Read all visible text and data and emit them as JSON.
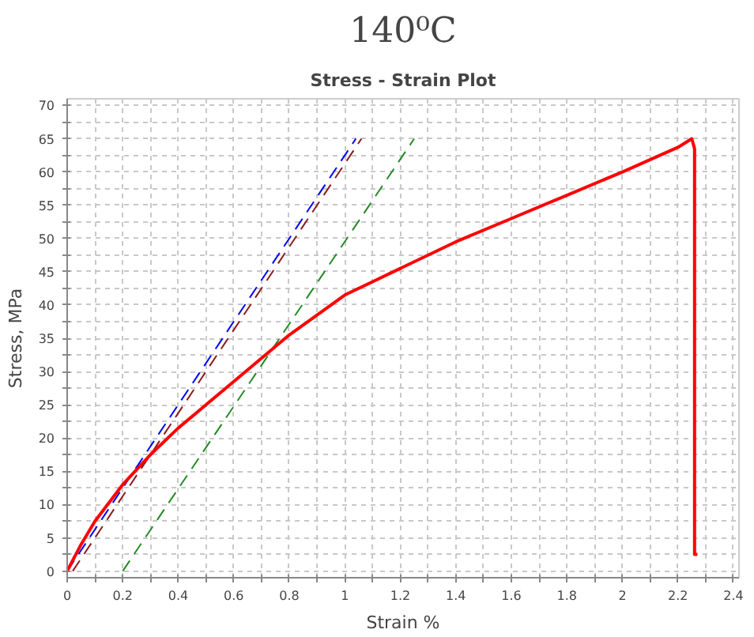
{
  "chart_data": {
    "type": "line",
    "title": "140⁰C",
    "subtitle": "Stress - Strain Plot",
    "xlabel": "Strain %",
    "ylabel": "Stress, MPa",
    "xlim": [
      0,
      2.42
    ],
    "ylim": [
      -1,
      71
    ],
    "xticks": [
      0,
      {
        "value": 0.1,
        "label": null
      },
      0.2,
      {
        "value": 0.3,
        "label": null
      },
      0.4,
      {
        "value": 0.5,
        "label": null
      },
      0.6,
      {
        "value": 0.7,
        "label": null
      },
      0.8,
      {
        "value": 0.9,
        "label": null
      },
      1,
      {
        "value": 1.1,
        "label": null
      },
      1.2,
      {
        "value": 1.3,
        "label": null
      },
      1.4,
      {
        "value": 1.5,
        "label": null
      },
      1.6,
      {
        "value": 1.7,
        "label": null
      },
      1.8,
      {
        "value": 1.9,
        "label": null
      },
      2,
      {
        "value": 2.1,
        "label": null
      },
      2.2,
      {
        "value": 2.3,
        "label": null
      },
      2.4
    ],
    "yticks": [
      0,
      {
        "value": 2.5,
        "label": null
      },
      5,
      {
        "value": 7.5,
        "label": null
      },
      10,
      {
        "value": 12.5,
        "label": null
      },
      15,
      {
        "value": 17.5,
        "label": null
      },
      20,
      {
        "value": 22.5,
        "label": null
      },
      25,
      {
        "value": 27.5,
        "label": null
      },
      30,
      {
        "value": 32.5,
        "label": null
      },
      35,
      {
        "value": 37.5,
        "label": null
      },
      40,
      {
        "value": 42.5,
        "label": null
      },
      45,
      {
        "value": 47.5,
        "label": null
      },
      50,
      {
        "value": 52.5,
        "label": null
      },
      55,
      {
        "value": 57.5,
        "label": null
      },
      60,
      {
        "value": 62.5,
        "label": null
      },
      65,
      {
        "value": 67.5,
        "label": null
      },
      70
    ],
    "grid": true,
    "series": [
      {
        "color": "#0000ff",
        "line_style": "dashed",
        "x": [
          0,
          1.04
        ],
        "values": [
          0,
          65
        ]
      },
      {
        "color": "#8b1a1a",
        "line_style": "dashed",
        "x": [
          0.02,
          1.06
        ],
        "values": [
          0,
          65
        ]
      },
      {
        "color": "#228b22",
        "line_style": "dashed",
        "x": [
          0.2,
          1.25
        ],
        "values": [
          0,
          65
        ]
      },
      {
        "color": "#ff0000",
        "line_style": "solid",
        "x": [
          0,
          0.05,
          0.1,
          0.2,
          0.3,
          0.4,
          0.5,
          0.6,
          0.7,
          0.8,
          0.9,
          1.0,
          1.1,
          1.2,
          1.4,
          1.6,
          1.8,
          2.0,
          2.2,
          2.25,
          2.26,
          2.26,
          2.27
        ],
        "values": [
          0,
          4,
          7.5,
          13,
          17.5,
          21.5,
          25,
          28.5,
          32,
          35.5,
          38.5,
          41.5,
          43.5,
          45.5,
          49.5,
          53,
          56.5,
          60,
          63.7,
          65,
          63.5,
          2.5,
          2.5
        ]
      }
    ]
  }
}
